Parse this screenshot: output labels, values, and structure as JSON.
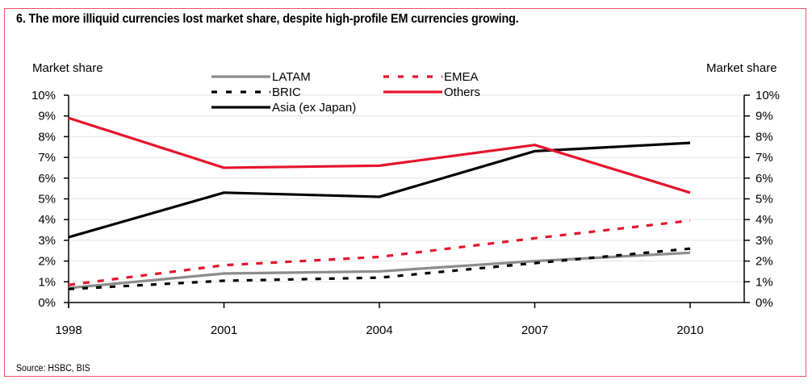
{
  "chart_data": {
    "type": "line",
    "title": "6. The more illiquid currencies lost market share, despite high-profile EM currencies growing.",
    "source": "Source: HSBC, BIS",
    "xlabel": "",
    "ylabel_left": "Market share",
    "ylabel_right": "Market share",
    "x": [
      "1998",
      "2001",
      "2004",
      "2007",
      "2010"
    ],
    "ylim": [
      0,
      10
    ],
    "y_ticks": [
      "0%",
      "1%",
      "2%",
      "3%",
      "4%",
      "5%",
      "6%",
      "7%",
      "8%",
      "9%",
      "10%"
    ],
    "grid": true,
    "legend_position": "top-center",
    "series": [
      {
        "name": "LATAM",
        "color": "#8c8c8c",
        "style": "solid",
        "values": [
          0.7,
          1.4,
          1.5,
          2.0,
          2.4
        ]
      },
      {
        "name": "EMEA",
        "color": "#e5142b",
        "style": "dashed",
        "values": [
          0.85,
          1.8,
          2.2,
          3.1,
          3.95
        ]
      },
      {
        "name": "BRIC",
        "color": "#000000",
        "style": "dashed",
        "values": [
          0.65,
          1.05,
          1.2,
          1.9,
          2.6
        ]
      },
      {
        "name": "Others",
        "color": "#e5142b",
        "style": "solid",
        "values": [
          8.9,
          6.5,
          6.6,
          7.6,
          5.3
        ]
      },
      {
        "name": "Asia (ex  Japan)",
        "color": "#000000",
        "style": "solid",
        "values": [
          3.15,
          5.3,
          5.1,
          7.3,
          7.7
        ]
      }
    ]
  }
}
